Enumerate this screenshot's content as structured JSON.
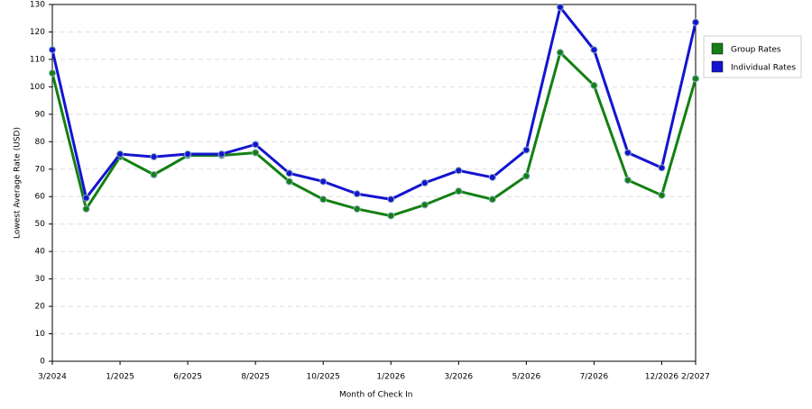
{
  "chart_data": {
    "type": "line",
    "x_label": "Month of Check In",
    "y_label": "Lowest Average Rate (USD)",
    "categories": [
      "3/2024",
      null,
      "1/2025",
      null,
      "6/2025",
      null,
      "8/2025",
      null,
      "10/2025",
      null,
      "1/2026",
      null,
      "3/2026",
      null,
      "5/2026",
      null,
      "7/2026",
      null,
      "12/2026",
      "2/2027"
    ],
    "series": [
      {
        "name": "Group Rates",
        "color": "#128012",
        "values": [
          105,
          55.5,
          74.5,
          68,
          75,
          75,
          76,
          65.5,
          59,
          55.5,
          53,
          57,
          62,
          59,
          67.5,
          112.5,
          100.5,
          66,
          60.5,
          103
        ]
      },
      {
        "name": "Individual Rates",
        "color": "#1414d0",
        "values": [
          113.5,
          59.5,
          75.5,
          74.5,
          75.5,
          75.5,
          79,
          68.5,
          65.5,
          61,
          59,
          65,
          69.5,
          67,
          77,
          129,
          113.5,
          76,
          70.5,
          123.5
        ]
      }
    ],
    "ylim": [
      0,
      130
    ],
    "yticks": [
      0,
      10,
      20,
      30,
      40,
      50,
      60,
      70,
      80,
      90,
      100,
      110,
      120,
      130
    ],
    "grid": true,
    "legend": "right"
  }
}
